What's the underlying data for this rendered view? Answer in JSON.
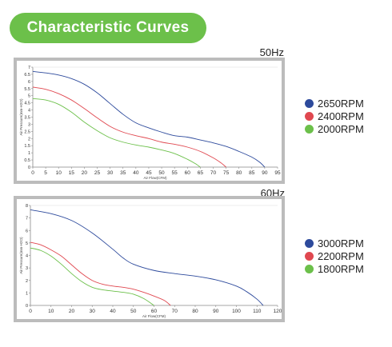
{
  "page": {
    "title": "Characteristic Curves"
  },
  "colors": {
    "blue": "#2d4a9c",
    "red": "#e04850",
    "green": "#6cc04a"
  },
  "chart_data": [
    {
      "type": "line",
      "frequency": "50Hz",
      "xlabel": "Air Flow(CFM)",
      "ylabel": "Air Pressure(mm-H2O)",
      "xlim": [
        0,
        95
      ],
      "ylim": [
        0,
        7
      ],
      "xticks": [
        0,
        5,
        10,
        15,
        20,
        25,
        30,
        35,
        40,
        45,
        50,
        55,
        60,
        65,
        70,
        75,
        80,
        85,
        90,
        95
      ],
      "yticks": [
        0,
        0.5,
        1,
        1.5,
        2,
        2.5,
        3,
        3.5,
        4,
        4.5,
        5,
        5.5,
        6,
        6.5,
        7
      ],
      "series": [
        {
          "name": "2650RPM",
          "color": "#2d4a9c",
          "points": [
            [
              0,
              6.7
            ],
            [
              5,
              6.6
            ],
            [
              10,
              6.45
            ],
            [
              15,
              6.2
            ],
            [
              20,
              5.8
            ],
            [
              25,
              5.2
            ],
            [
              30,
              4.45
            ],
            [
              35,
              3.7
            ],
            [
              40,
              3.1
            ],
            [
              45,
              2.75
            ],
            [
              50,
              2.45
            ],
            [
              55,
              2.2
            ],
            [
              60,
              2.1
            ],
            [
              65,
              1.9
            ],
            [
              70,
              1.7
            ],
            [
              75,
              1.45
            ],
            [
              80,
              1.1
            ],
            [
              85,
              0.7
            ],
            [
              88,
              0.35
            ],
            [
              90,
              0
            ]
          ]
        },
        {
          "name": "2400RPM",
          "color": "#e04850",
          "points": [
            [
              0,
              5.6
            ],
            [
              5,
              5.45
            ],
            [
              10,
              5.15
            ],
            [
              15,
              4.7
            ],
            [
              20,
              4.1
            ],
            [
              25,
              3.45
            ],
            [
              30,
              2.85
            ],
            [
              35,
              2.45
            ],
            [
              40,
              2.2
            ],
            [
              45,
              2.0
            ],
            [
              50,
              1.75
            ],
            [
              55,
              1.6
            ],
            [
              60,
              1.4
            ],
            [
              65,
              1.1
            ],
            [
              70,
              0.65
            ],
            [
              73,
              0.3
            ],
            [
              75,
              0
            ]
          ]
        },
        {
          "name": "2000RPM",
          "color": "#6cc04a",
          "points": [
            [
              0,
              4.8
            ],
            [
              5,
              4.7
            ],
            [
              10,
              4.4
            ],
            [
              15,
              3.85
            ],
            [
              20,
              3.15
            ],
            [
              25,
              2.55
            ],
            [
              30,
              2.05
            ],
            [
              35,
              1.75
            ],
            [
              40,
              1.55
            ],
            [
              45,
              1.4
            ],
            [
              50,
              1.2
            ],
            [
              55,
              0.95
            ],
            [
              60,
              0.55
            ],
            [
              63,
              0.25
            ],
            [
              65,
              0
            ]
          ]
        }
      ],
      "legend": [
        "2650RPM",
        "2400RPM",
        "2000RPM"
      ]
    },
    {
      "type": "line",
      "frequency": "60Hz",
      "xlabel": "Air Flow(CFM)",
      "ylabel": "Air Pressure(mm-H2O)",
      "xlim": [
        0,
        120
      ],
      "ylim": [
        0,
        8
      ],
      "xticks": [
        0,
        10,
        20,
        30,
        40,
        50,
        60,
        70,
        80,
        90,
        100,
        110,
        120
      ],
      "yticks": [
        0,
        1,
        2,
        3,
        4,
        5,
        6,
        7,
        8
      ],
      "series": [
        {
          "name": "3000RPM",
          "color": "#2d4a9c",
          "points": [
            [
              0,
              7.65
            ],
            [
              10,
              7.35
            ],
            [
              20,
              6.8
            ],
            [
              30,
              5.8
            ],
            [
              40,
              4.5
            ],
            [
              45,
              3.8
            ],
            [
              50,
              3.3
            ],
            [
              60,
              2.8
            ],
            [
              70,
              2.55
            ],
            [
              80,
              2.35
            ],
            [
              90,
              2.05
            ],
            [
              100,
              1.55
            ],
            [
              105,
              1.1
            ],
            [
              110,
              0.5
            ],
            [
              113,
              0
            ]
          ]
        },
        {
          "name": "2200RPM",
          "color": "#e04850",
          "points": [
            [
              0,
              5.05
            ],
            [
              5,
              4.85
            ],
            [
              10,
              4.45
            ],
            [
              15,
              3.95
            ],
            [
              20,
              3.25
            ],
            [
              25,
              2.55
            ],
            [
              30,
              2.0
            ],
            [
              35,
              1.7
            ],
            [
              40,
              1.55
            ],
            [
              45,
              1.45
            ],
            [
              50,
              1.3
            ],
            [
              55,
              1.05
            ],
            [
              60,
              0.75
            ],
            [
              65,
              0.4
            ],
            [
              68,
              0
            ]
          ]
        },
        {
          "name": "1800RPM",
          "color": "#6cc04a",
          "points": [
            [
              0,
              4.6
            ],
            [
              5,
              4.4
            ],
            [
              10,
              3.95
            ],
            [
              15,
              3.3
            ],
            [
              20,
              2.55
            ],
            [
              25,
              1.9
            ],
            [
              30,
              1.45
            ],
            [
              35,
              1.25
            ],
            [
              40,
              1.15
            ],
            [
              45,
              1.05
            ],
            [
              50,
              0.9
            ],
            [
              55,
              0.55
            ],
            [
              60,
              0
            ]
          ]
        }
      ],
      "legend": [
        "3000RPM",
        "2200RPM",
        "1800RPM"
      ]
    }
  ]
}
